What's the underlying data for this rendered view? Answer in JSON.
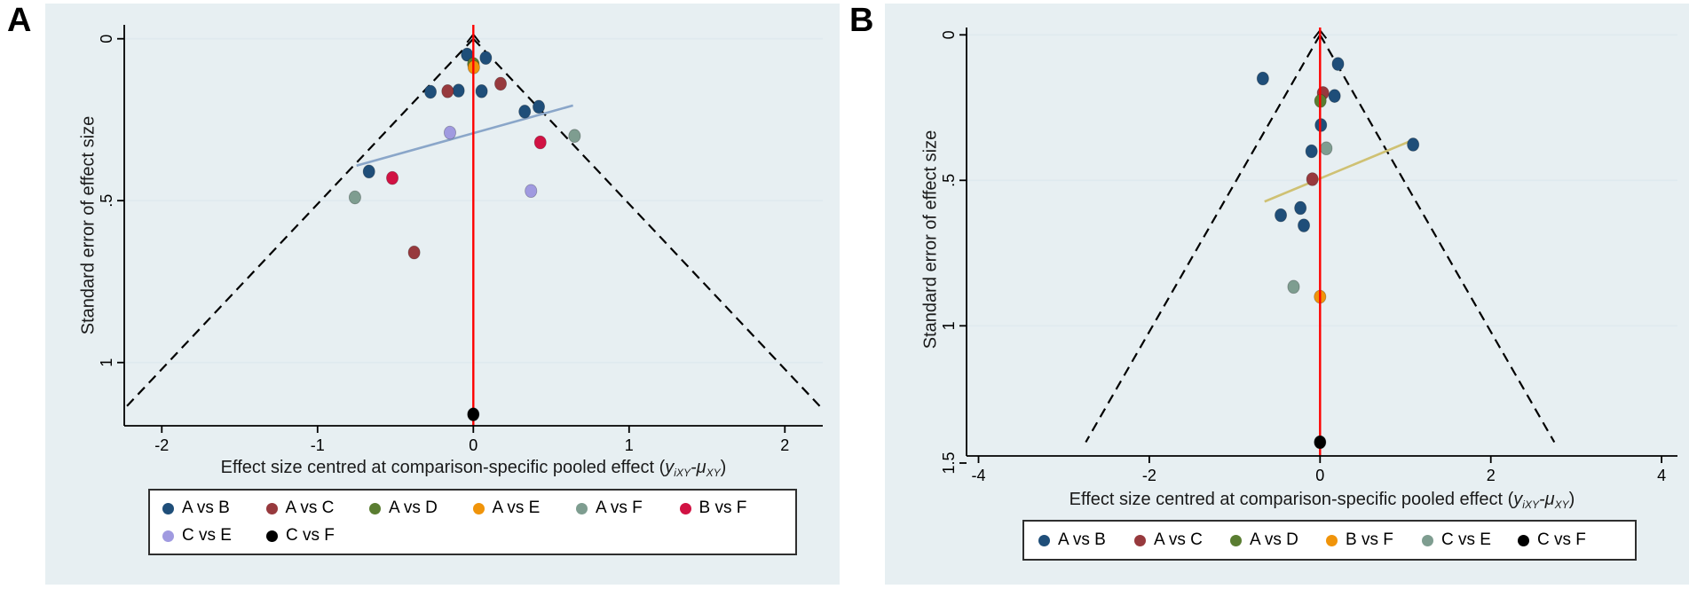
{
  "page": {
    "background": "#ffffff"
  },
  "chart_data": [
    {
      "type": "scatter",
      "panel_label": "A",
      "title": "",
      "ylabel": "Standard error of effect size",
      "xlabel": {
        "text": "Effect size centred at comparison-specific pooled effect (yiXY-μXY)",
        "pre": "Effect size centred at comparison-specific pooled effect (",
        "y_var": "y",
        "y_sub": "iXY",
        "minus": "-",
        "mu_var": "μ",
        "mu_sub": "XY",
        "close": ")"
      },
      "x_ticks": [
        {
          "v": -2,
          "label": "-2"
        },
        {
          "v": -1,
          "label": "-1"
        },
        {
          "v": 0,
          "label": "0"
        },
        {
          "v": 1,
          "label": "1"
        },
        {
          "v": 2,
          "label": "2"
        }
      ],
      "y_ticks": [
        {
          "v": 0,
          "label": "0"
        },
        {
          "v": 0.5,
          "label": ".5"
        },
        {
          "v": 1,
          "label": "1"
        }
      ],
      "xlim": [
        -2.24,
        2.24
      ],
      "ylim": [
        0,
        1.2
      ],
      "grid": true,
      "legend_position": "bottom",
      "legend_row_sizes": [
        6,
        2
      ],
      "ref_line": {
        "x": 0,
        "color": "#fe0000"
      },
      "funnel": {
        "center_x": 0,
        "multiplier": 1.96,
        "se_end": 1.143,
        "style": "dashed",
        "color": "#000000"
      },
      "trend_line": {
        "color": "#8aa6c9",
        "x1": -0.75,
        "se1": 0.392,
        "x2": 0.64,
        "se2": 0.206
      },
      "series": [
        {
          "name": "A vs B",
          "color": "#1f4e79",
          "points": [
            [
              -0.04,
              0.049
            ],
            [
              0.08,
              0.059
            ],
            [
              0.053,
              0.162
            ],
            [
              -0.095,
              0.16
            ],
            [
              -0.275,
              0.164
            ],
            [
              0.42,
              0.21
            ],
            [
              0.33,
              0.225
            ],
            [
              -0.67,
              0.41
            ]
          ]
        },
        {
          "name": "A vs C",
          "color": "#97393d",
          "points": [
            [
              0.175,
              0.139
            ],
            [
              -0.165,
              0.162
            ],
            [
              -0.38,
              0.66
            ]
          ]
        },
        {
          "name": "A vs D",
          "color": "#5a7d31",
          "points": [
            [
              0.0,
              0.078
            ]
          ]
        },
        {
          "name": "A vs E",
          "color": "#f0940a",
          "points": [
            [
              0.003,
              0.088
            ]
          ]
        },
        {
          "name": "A vs F",
          "color": "#7e9d90",
          "points": [
            [
              0.65,
              0.3
            ],
            [
              -0.76,
              0.49
            ]
          ]
        },
        {
          "name": "B vs F",
          "color": "#d11243",
          "points": [
            [
              0.43,
              0.32
            ],
            [
              -0.52,
              0.43
            ]
          ]
        },
        {
          "name": "C vs E",
          "color": "#a09ae0",
          "points": [
            [
              -0.15,
              0.29
            ],
            [
              0.37,
              0.47
            ]
          ]
        },
        {
          "name": "C vs F",
          "color": "#000000",
          "points": [
            [
              0.0,
              1.16
            ]
          ]
        }
      ]
    },
    {
      "type": "scatter",
      "panel_label": "B",
      "title": "",
      "ylabel": "Standard error of effect size",
      "xlabel": {
        "text": "Effect size centred at comparison-specific pooled effect (yiXY-μXY)",
        "pre": "Effect size centred at comparison-specific pooled effect (",
        "y_var": "y",
        "y_sub": "iXY",
        "minus": "-",
        "mu_var": "μ",
        "mu_sub": "XY",
        "close": ")"
      },
      "x_ticks": [
        {
          "v": -4,
          "label": "-4"
        },
        {
          "v": -2,
          "label": "-2"
        },
        {
          "v": 0,
          "label": "0"
        },
        {
          "v": 2,
          "label": "2"
        },
        {
          "v": 4,
          "label": "4"
        }
      ],
      "y_ticks": [
        {
          "v": 0,
          "label": "0"
        },
        {
          "v": 0.5,
          "label": ".5"
        },
        {
          "v": 1,
          "label": "1"
        },
        {
          "v": 1.5,
          "label": "1.5"
        }
      ],
      "xlim": [
        -4.14,
        4.19
      ],
      "ylim": [
        0,
        1.45
      ],
      "grid": true,
      "legend_position": "bottom",
      "legend_row_sizes": [
        6
      ],
      "ref_line": {
        "x": 0,
        "color": "#fe0000"
      },
      "funnel": {
        "center_x": 0,
        "multiplier": 1.96,
        "se_end": 1.4,
        "style": "dashed",
        "color": "#000000"
      },
      "trend_line": {
        "color": "#cfc173",
        "x1": -0.65,
        "se1": 0.573,
        "x2": 1.1,
        "se2": 0.36
      },
      "series": [
        {
          "name": "A vs B",
          "color": "#1f4e79",
          "points": [
            [
              0.21,
              0.1
            ],
            [
              -0.67,
              0.15
            ],
            [
              0.17,
              0.21
            ],
            [
              0.01,
              0.31
            ],
            [
              -0.1,
              0.4
            ],
            [
              1.09,
              0.377
            ],
            [
              -0.23,
              0.595
            ],
            [
              -0.46,
              0.62
            ],
            [
              -0.19,
              0.655
            ]
          ]
        },
        {
          "name": "A vs C",
          "color": "#97393d",
          "points": [
            [
              0.035,
              0.2
            ],
            [
              -0.09,
              0.496
            ]
          ]
        },
        {
          "name": "A vs D",
          "color": "#5a7d31",
          "points": [
            [
              0.004,
              0.227
            ]
          ]
        },
        {
          "name": "B vs F",
          "color": "#f0940a",
          "points": [
            [
              0.0,
              0.9
            ]
          ]
        },
        {
          "name": "C vs E",
          "color": "#7e9d90",
          "points": [
            [
              0.073,
              0.39
            ],
            [
              -0.31,
              0.866
            ]
          ]
        },
        {
          "name": "C vs F",
          "color": "#000000",
          "points": [
            [
              0.0,
              1.4
            ]
          ]
        }
      ]
    }
  ]
}
